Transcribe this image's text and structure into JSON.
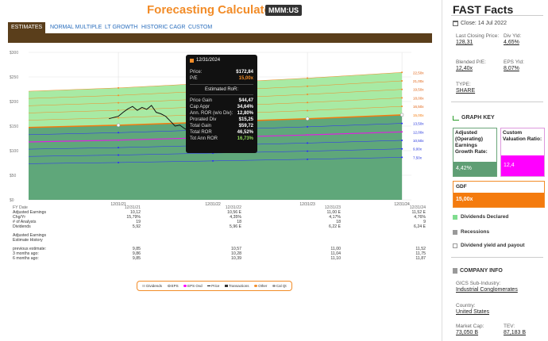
{
  "header": {
    "title": "Forecasting Calculators",
    "ticker": "MMM:US"
  },
  "tabs": [
    {
      "label": "ESTIMATES",
      "active": true
    },
    {
      "label": "NORMAL MULTIPLE",
      "active": false
    },
    {
      "label": "LT GROWTH",
      "active": false
    },
    {
      "label": "HISTORIC CAGR",
      "active": false
    },
    {
      "label": "CUSTOM",
      "active": false
    }
  ],
  "chart_data": {
    "type": "area",
    "x_labels": [
      "12/31/21",
      "12/31/22",
      "12/31/23",
      "12/31/24"
    ],
    "y_ticks": [
      "$300",
      "$250",
      "$200",
      "$150",
      "$100",
      "$50",
      "$0"
    ],
    "ylim": [
      0,
      300
    ],
    "pe_lines": [
      "22,50x",
      "21,00x",
      "19,50x",
      "18,00x",
      "16,50x",
      "15,00x",
      "13,50x",
      "12,00x",
      "10,50x",
      "9,00x",
      "7,50x"
    ],
    "fair_value_pe": "15,00x",
    "eps": [
      10.12,
      10.56,
      11.0,
      11.52
    ],
    "price_history": [
      [
        -0.1,
        165
      ],
      [
        0.0,
        170
      ],
      [
        0.05,
        178
      ],
      [
        0.1,
        185
      ],
      [
        0.15,
        190
      ],
      [
        0.2,
        182
      ],
      [
        0.25,
        188
      ],
      [
        0.3,
        184
      ],
      [
        0.35,
        192
      ],
      [
        0.4,
        178
      ],
      [
        0.45,
        175
      ],
      [
        0.5,
        170
      ],
      [
        0.55,
        160
      ],
      [
        0.6,
        150
      ],
      [
        0.65,
        152
      ],
      [
        0.7,
        145
      ],
      [
        0.75,
        140
      ],
      [
        0.8,
        143
      ],
      [
        0.85,
        135
      ],
      [
        0.9,
        130
      ],
      [
        0.95,
        125
      ],
      [
        1.0,
        128
      ],
      [
        1.1,
        130
      ],
      [
        1.15,
        128
      ]
    ],
    "fair_value_points": [
      {
        "x": "12/31/21",
        "y": 151.8
      },
      {
        "x": "12/31/22",
        "y": 158.4
      },
      {
        "x": "12/31/23",
        "y": 165.0
      },
      {
        "x": "12/31/24",
        "y": 172.8
      }
    ],
    "colors": {
      "green_band": "#9ee89a",
      "lower_band": "#5fa77a",
      "orange_line": "#f47b0e",
      "magenta_line": "#e020e0",
      "blue_line": "#2a2aff"
    }
  },
  "tooltip": {
    "date": "12/31/2024",
    "price_label": "Price:",
    "price": "$172,84",
    "pe_label": "P/E",
    "pe": "15,00x",
    "heading": "Estimated RoR:",
    "rows": [
      {
        "label": "Price Gain",
        "value": "$44,47"
      },
      {
        "label": "Cap Appr",
        "value": "34,64%"
      },
      {
        "label": "Ann. ROR (w/o Div):",
        "value": "12,80%"
      },
      {
        "label": "Prorated Div",
        "value": "$15,25"
      },
      {
        "label": "Total Gain",
        "value": "$59,72"
      },
      {
        "label": "Total ROR",
        "value": "46,52%"
      },
      {
        "label": "Tot Ann ROR",
        "value": "16,73%"
      }
    ]
  },
  "table": {
    "fy_label": "FY Date",
    "rows": [
      {
        "label": "Adjusted Earnings",
        "vals": [
          "10,12",
          "10,56 E",
          "11,00 E",
          "11,52 E"
        ]
      },
      {
        "label": "Chg/Yr",
        "vals": [
          "15,79%",
          "4,35%",
          "4,17%",
          "4,76%"
        ]
      },
      {
        "label": "# of Analysts",
        "vals": [
          "19",
          "18",
          "18",
          "9"
        ]
      },
      {
        "label": "Dividends",
        "vals": [
          "5,92",
          "5,96 E",
          "6,22 E",
          "6,24 E"
        ]
      }
    ],
    "history_title_1": "Adjusted Earnings",
    "history_title_2": "Estimate History",
    "history_rows": [
      {
        "label": "previous estimate:",
        "vals": [
          "9,85",
          "10,57",
          "11,00",
          "11,52"
        ]
      },
      {
        "label": "3 months ago:",
        "vals": [
          "9,86",
          "10,28",
          "11,04",
          "11,75"
        ]
      },
      {
        "label": "6 months ago:",
        "vals": [
          "9,85",
          "10,39",
          "11,10",
          "11,87"
        ]
      }
    ]
  },
  "legend": [
    {
      "label": "Dividends",
      "color": "#d0d0d0"
    },
    {
      "label": "EPS",
      "color": "#ffffff"
    },
    {
      "label": "EPS Ovd",
      "color": "#ff00ff"
    },
    {
      "label": "Price",
      "color": "#111111"
    },
    {
      "label": "Transactions",
      "color": "#333333"
    },
    {
      "label": "Other",
      "color": "#f28c28"
    },
    {
      "label": "Cal Qt",
      "color": "#999999"
    }
  ],
  "fast_facts": {
    "title": "FAST Facts",
    "close": "Close: 14 Jul 2022",
    "last_closing_price_label": "Last Closing Price:",
    "last_closing_price": "128,31",
    "div_yld_label": "Div Yld:",
    "div_yld": "4,65%",
    "blended_pe_label": "Blended P/E:",
    "blended_pe": "12,40x",
    "eps_yld_label": "EPS Yld:",
    "eps_yld": "8,07%",
    "type_label": "TYPE:",
    "type": "SHARE"
  },
  "graph_key": {
    "title": "GRAPH KEY",
    "egr_label": "Adjusted (Operating) Earnings Growth Rate:",
    "egr_value": "4,42%",
    "cvr_label": "Custom Valuation Ratio:",
    "cvr_value": "12,4",
    "gdf_label": "GDF",
    "gdf_value": "15,00x",
    "dividends_declared": "Dividends Declared",
    "recessions": "Recessions",
    "dividend_yield": "Dividend yield and payout"
  },
  "company": {
    "title": "COMPANY INFO",
    "industry_label": "GICS Sub-Industry:",
    "industry": "Industrial Conglomerates",
    "country_label": "Country:",
    "country": "United States",
    "mcap_label": "Market Cap:",
    "mcap": "73,050 B",
    "tev_label": "TEV:",
    "tev": "87,183 B"
  }
}
